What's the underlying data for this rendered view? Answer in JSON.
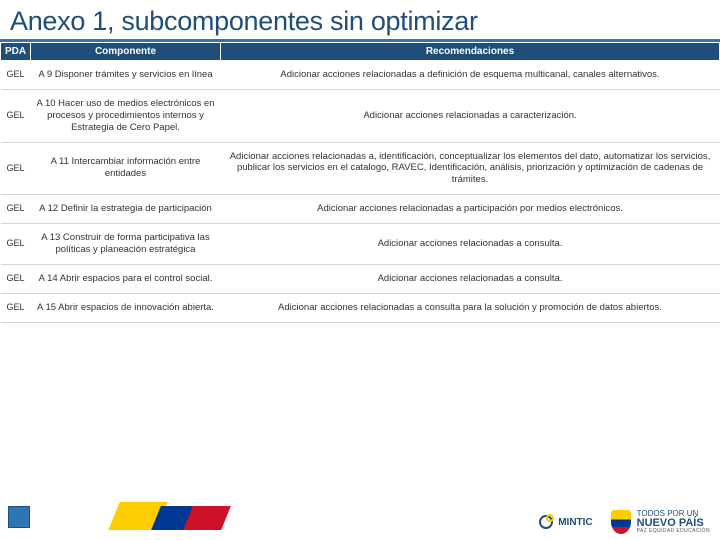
{
  "title": "Anexo 1, subcomponentes sin optimizar",
  "columns": {
    "pda": "PDA",
    "componente": "Componente",
    "recomendaciones": "Recomendaciones"
  },
  "rows": [
    {
      "pda": "GEL",
      "componente": "A 9 Disponer trámites y servicios en línea",
      "recomendacion": "Adicionar acciones relacionadas a definición de esquema multicanal, canales alternativos."
    },
    {
      "pda": "GEL",
      "componente": "A 10 Hacer uso de medios electrónicos en procesos y procedimientos internos y Estrategia de Cero Papel.",
      "recomendacion": "Adicionar acciones relacionadas a caracterización."
    },
    {
      "pda": "GEL",
      "componente": "A 11 Intercambiar información entre entidades",
      "recomendacion": "Adicionar acciones relacionadas a, identificación, conceptualizar los elementos del dato, automatizar los servicios, publicar los servicios en el catalogo, RAVEC, Identificación, análisis, priorización y optimización de cadenas de trámites."
    },
    {
      "pda": "GEL",
      "componente": "A 12 Definir la estrategia de participación",
      "recomendacion": "Adicionar acciones relacionadas a participación por medios electrónicos."
    },
    {
      "pda": "GEL",
      "componente": "A 13 Construir de forma participativa las políticas y planeación estratégica",
      "recomendacion": "Adicionar acciones relacionadas a consulta."
    },
    {
      "pda": "GEL",
      "componente": "A 14 Abrir espacios para el control social.",
      "recomendacion": "Adicionar acciones relacionadas a consulta."
    },
    {
      "pda": "GEL",
      "componente": "A 15 Abrir espacios de innovación abierta.",
      "recomendacion": "Adicionar acciones relacionadas a consulta para la solución y promoción de datos abiertos."
    }
  ],
  "footer": {
    "mintic": "MINTIC",
    "nuevopais_line1": "TODOS POR UN",
    "nuevopais_line2": "NUEVO PAÍS",
    "nuevopais_tag": "PAZ  EQUIDAD  EDUCACIÓN"
  },
  "styling": {
    "title_color": "#1f4e79",
    "header_bg": "#1f4e79",
    "header_text": "#ffffff",
    "accent_underline": "#2e75b6",
    "row_border": "#d0d7de",
    "flag": {
      "yellow": "#ffce00",
      "blue": "#003893",
      "red": "#ce1126"
    }
  }
}
